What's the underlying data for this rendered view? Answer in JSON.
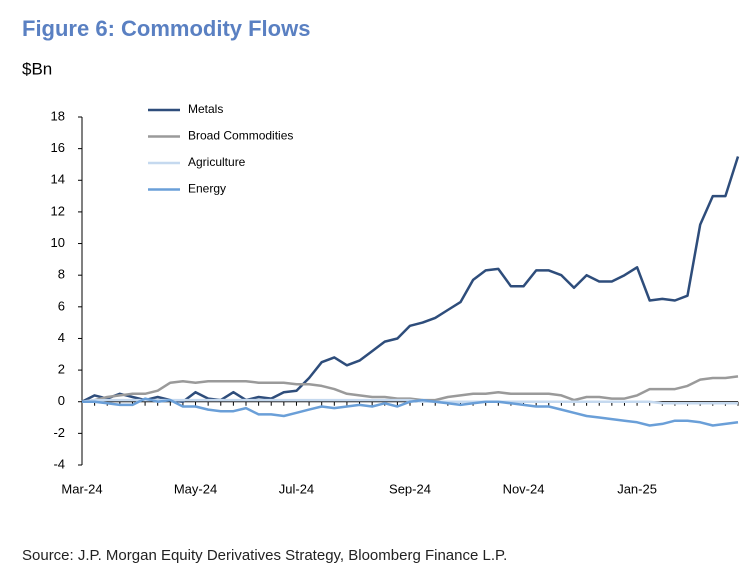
{
  "chart_data": {
    "type": "line",
    "title": "Figure 6: Commodity Flows",
    "y_label": "$Bn",
    "source": "Source: J.P. Morgan Equity Derivatives Strategy, Bloomberg Finance L.P.",
    "categories": [
      "Mar-24",
      null,
      null,
      null,
      null,
      null,
      null,
      null,
      null,
      "May-24",
      null,
      null,
      null,
      null,
      null,
      null,
      null,
      "Jul-24",
      null,
      null,
      null,
      null,
      null,
      null,
      null,
      null,
      "Sep-24",
      null,
      null,
      null,
      null,
      null,
      null,
      null,
      null,
      "Nov-24",
      null,
      null,
      null,
      null,
      null,
      null,
      null,
      null,
      "Jan-25",
      null,
      null,
      null,
      null,
      null,
      null,
      null,
      null
    ],
    "ylim": [
      -4,
      18
    ],
    "yticks": [
      -4,
      -2,
      0,
      2,
      4,
      6,
      8,
      10,
      12,
      14,
      16,
      18
    ],
    "legend": "top-left",
    "series": [
      {
        "name": "Metals",
        "color": "#2e4d7b",
        "values": [
          0,
          0.4,
          0.2,
          0.5,
          0.3,
          0.1,
          0.3,
          0.1,
          0,
          0.6,
          0.2,
          0.1,
          0.6,
          0.1,
          0.3,
          0.2,
          0.6,
          0.7,
          1.5,
          2.5,
          2.8,
          2.3,
          2.6,
          3.2,
          3.8,
          4.0,
          4.8,
          5.0,
          5.3,
          5.8,
          6.3,
          7.7,
          8.3,
          8.4,
          7.3,
          7.3,
          8.3,
          8.3,
          8.0,
          7.2,
          8.0,
          7.6,
          7.6,
          8.0,
          8.5,
          6.4,
          6.5,
          6.4,
          6.7,
          11.2,
          13.0,
          13.0,
          15.5
        ]
      },
      {
        "name": "Broad Commodities",
        "color": "#9a9a9a",
        "values": [
          0,
          0.1,
          0.3,
          0.4,
          0.5,
          0.5,
          0.7,
          1.2,
          1.3,
          1.2,
          1.3,
          1.3,
          1.3,
          1.3,
          1.2,
          1.2,
          1.2,
          1.1,
          1.1,
          1.0,
          0.8,
          0.5,
          0.4,
          0.3,
          0.3,
          0.2,
          0.2,
          0.1,
          0.1,
          0.3,
          0.4,
          0.5,
          0.5,
          0.6,
          0.5,
          0.5,
          0.5,
          0.5,
          0.4,
          0.1,
          0.3,
          0.3,
          0.2,
          0.2,
          0.4,
          0.8,
          0.8,
          0.8,
          1.0,
          1.4,
          1.5,
          1.5,
          1.6
        ]
      },
      {
        "name": "Agriculture",
        "color": "#c5d9ef",
        "values": [
          0,
          0.1,
          0.1,
          0.1,
          0.1,
          0.1,
          0.1,
          0.1,
          0.1,
          0.1,
          0.1,
          0.1,
          0.1,
          0.1,
          0.1,
          0.1,
          0.1,
          0.1,
          0.1,
          0.1,
          0.1,
          0.1,
          0.1,
          0.1,
          0.1,
          0.1,
          0.1,
          0,
          0,
          0,
          0,
          0,
          0,
          0,
          0,
          0,
          0,
          0,
          0,
          0,
          0,
          0,
          0,
          0,
          0,
          0,
          -0.1,
          -0.1,
          -0.1,
          -0.1,
          -0.1,
          -0.1,
          -0.1
        ]
      },
      {
        "name": "Energy",
        "color": "#6a9fd8",
        "values": [
          0,
          0,
          -0.1,
          -0.2,
          -0.2,
          0.2,
          0,
          0.1,
          -0.3,
          -0.3,
          -0.5,
          -0.6,
          -0.6,
          -0.4,
          -0.8,
          -0.8,
          -0.9,
          -0.7,
          -0.5,
          -0.3,
          -0.4,
          -0.3,
          -0.2,
          -0.3,
          -0.1,
          -0.3,
          0,
          0.1,
          0,
          -0.1,
          -0.2,
          -0.1,
          0,
          0,
          -0.1,
          -0.2,
          -0.3,
          -0.3,
          -0.5,
          -0.7,
          -0.9,
          -1.0,
          -1.1,
          -1.2,
          -1.3,
          -1.5,
          -1.4,
          -1.2,
          -1.2,
          -1.3,
          -1.5,
          -1.4,
          -1.3
        ]
      }
    ]
  }
}
